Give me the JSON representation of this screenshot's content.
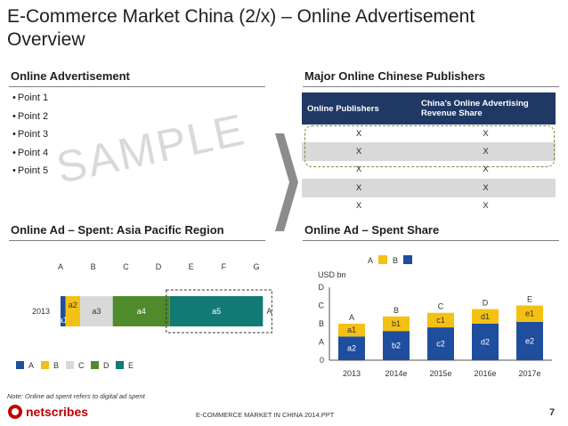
{
  "title": "E-Commerce Market China (2/x) – Online Advertisement Overview",
  "sections": {
    "online_ad": "Online Advertisement",
    "publishers": "Major Online Chinese Publishers",
    "spent_region": "Online Ad – Spent: Asia Pacific Region",
    "spent_share": "Online Ad – Spent Share"
  },
  "bullets": [
    "Point 1",
    "Point 2",
    "Point 3",
    "Point 4",
    "Point 5"
  ],
  "watermark": "SAMPLE",
  "publishers_table": {
    "headers": [
      "Online Publishers",
      "China’s Online Advertising Revenue Share"
    ],
    "rows": [
      [
        "X",
        "X"
      ],
      [
        "X",
        "X"
      ],
      [
        "X",
        "X"
      ],
      [
        "X",
        "X"
      ],
      [
        "X",
        "X"
      ]
    ]
  },
  "colors": {
    "navy": "#1f3864",
    "blue": "#1f4e9f",
    "gold": "#f4c013",
    "gray": "#d9d9d9",
    "green": "#4f8a2c",
    "teal": "#117a74",
    "red": "#c00000"
  },
  "chart_data": [
    {
      "type": "bar",
      "orientation": "horizontal",
      "stacked": true,
      "categories": [
        "2013"
      ],
      "x_tick_labels": [
        "A",
        "B",
        "C",
        "D",
        "E",
        "F",
        "G"
      ],
      "end_label": "A",
      "segments": [
        {
          "name": "A",
          "label": "a1",
          "value": 0.15,
          "color": "#1f4e9f"
        },
        {
          "name": "B",
          "label": "a2",
          "value": 0.45,
          "color": "#f4c013"
        },
        {
          "name": "C",
          "label": "a3",
          "value": 1.0,
          "color": "#d9d9d9"
        },
        {
          "name": "D",
          "label": "a4",
          "value": 1.75,
          "color": "#4f8a2c"
        },
        {
          "name": "E",
          "label": "a5",
          "value": 2.85,
          "color": "#117a74"
        }
      ],
      "legend": [
        "A",
        "B",
        "C",
        "D",
        "E"
      ],
      "legend_position": "bottom"
    },
    {
      "type": "bar",
      "stacked": true,
      "ylabel": "USD bn",
      "y_tick_labels": [
        "0",
        "A",
        "B",
        "C",
        "D"
      ],
      "ylim": [
        0,
        4
      ],
      "categories": [
        "2013",
        "2014e",
        "2015e",
        "2016e",
        "2017e"
      ],
      "totals": [
        "A",
        "B",
        "C",
        "D",
        "E"
      ],
      "series": [
        {
          "name": "B",
          "color": "#1f4e9f",
          "values": [
            1.3,
            1.6,
            1.8,
            2.0,
            2.1
          ],
          "labels": [
            "a2",
            "b2",
            "c2",
            "d2",
            "e2"
          ]
        },
        {
          "name": "A",
          "color": "#f4c013",
          "values": [
            0.7,
            0.8,
            0.8,
            0.8,
            0.9
          ],
          "labels": [
            "a1",
            "b1",
            "c1",
            "d1",
            "e1"
          ]
        }
      ],
      "legend": [
        "A",
        "B"
      ],
      "legend_position": "top"
    }
  ],
  "note": "Note: Online ad spent refers to digital ad spent",
  "footer": "E-COMMERCE MARKET IN CHINA 2014.PPT",
  "page_number": "7",
  "logo": "netscribes"
}
